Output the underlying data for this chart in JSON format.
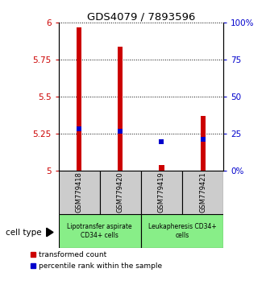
{
  "title": "GDS4079 / 7893596",
  "samples": [
    "GSM779418",
    "GSM779420",
    "GSM779419",
    "GSM779421"
  ],
  "red_values": [
    5.97,
    5.84,
    5.04,
    5.37
  ],
  "blue_values": [
    5.285,
    5.27,
    5.2,
    5.215
  ],
  "ylim": [
    5.0,
    6.0
  ],
  "yticks": [
    5.0,
    5.25,
    5.5,
    5.75,
    6.0
  ],
  "ytick_labels_left": [
    "5",
    "5.25",
    "5.5",
    "5.75",
    "6"
  ],
  "ytick_labels_right": [
    "0%",
    "25",
    "50",
    "75",
    "100%"
  ],
  "group_labels": [
    "Lipotransfer aspirate\nCD34+ cells",
    "Leukapheresis CD34+\ncells"
  ],
  "group_bg_color": "#88ee88",
  "sample_bg_color": "#cccccc",
  "red_color": "#cc0000",
  "blue_color": "#0000cc",
  "cell_type_label": "cell type",
  "legend_red": "transformed count",
  "legend_blue": "percentile rank within the sample"
}
